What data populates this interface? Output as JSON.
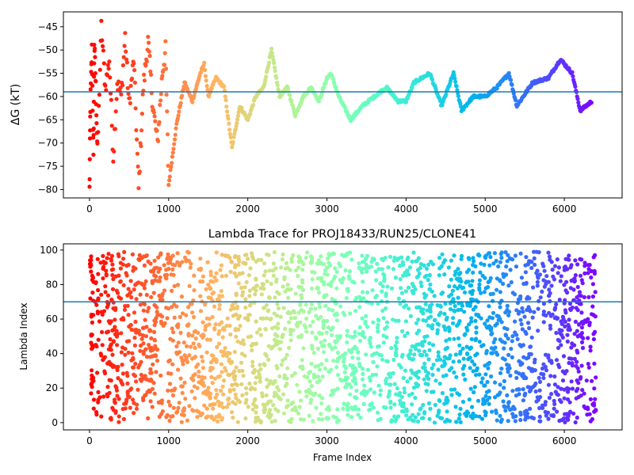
{
  "chart_data": [
    {
      "type": "scatter",
      "title": "",
      "xlabel": "",
      "ylabel": "ΔG (kT)",
      "xlim": [
        -330,
        6730
      ],
      "ylim": [
        -81.8,
        -41.8
      ],
      "xticks": [
        0,
        1000,
        2000,
        3000,
        4000,
        5000,
        6000
      ],
      "yticks": [
        -45,
        -50,
        -55,
        -60,
        -65,
        -70,
        -75,
        -80
      ],
      "hline": -59,
      "colormap": "rainbow (reversed: early frames red, late frames purple)",
      "point_keys": [
        [
          0,
          -80
        ],
        [
          10,
          -62
        ],
        [
          30,
          -50
        ],
        [
          50,
          -74
        ],
        [
          60,
          -48
        ],
        [
          80,
          -58
        ],
        [
          100,
          -72
        ],
        [
          150,
          -45
        ],
        [
          200,
          -58
        ],
        [
          250,
          -52
        ],
        [
          300,
          -73
        ],
        [
          350,
          -57
        ],
        [
          400,
          -60
        ],
        [
          450,
          -47
        ],
        [
          500,
          -62
        ],
        [
          560,
          -52
        ],
        [
          620,
          -80
        ],
        [
          680,
          -58
        ],
        [
          740,
          -48
        ],
        [
          800,
          -62
        ],
        [
          860,
          -70
        ],
        [
          920,
          -55
        ],
        [
          960,
          -50
        ],
        [
          1000,
          -79
        ],
        [
          1100,
          -66
        ],
        [
          1200,
          -57
        ],
        [
          1300,
          -61
        ],
        [
          1400,
          -55
        ],
        [
          1450,
          -53
        ],
        [
          1500,
          -60
        ],
        [
          1600,
          -56
        ],
        [
          1700,
          -58
        ],
        [
          1800,
          -71
        ],
        [
          1900,
          -62
        ],
        [
          2000,
          -65
        ],
        [
          2100,
          -60
        ],
        [
          2200,
          -58
        ],
        [
          2300,
          -50
        ],
        [
          2400,
          -60
        ],
        [
          2500,
          -58
        ],
        [
          2600,
          -64
        ],
        [
          2700,
          -60
        ],
        [
          2800,
          -58
        ],
        [
          2900,
          -61
        ],
        [
          3000,
          -56
        ],
        [
          3050,
          -55
        ],
        [
          3150,
          -60
        ],
        [
          3300,
          -65
        ],
        [
          3450,
          -62
        ],
        [
          3600,
          -60
        ],
        [
          3750,
          -58
        ],
        [
          3900,
          -61
        ],
        [
          4000,
          -61
        ],
        [
          4100,
          -57
        ],
        [
          4200,
          -56
        ],
        [
          4300,
          -55
        ],
        [
          4450,
          -62
        ],
        [
          4600,
          -55
        ],
        [
          4700,
          -63
        ],
        [
          4850,
          -60
        ],
        [
          5000,
          -60
        ],
        [
          5150,
          -58
        ],
        [
          5300,
          -55
        ],
        [
          5400,
          -62
        ],
        [
          5600,
          -57
        ],
        [
          5800,
          -56
        ],
        [
          5950,
          -52
        ],
        [
          6100,
          -55
        ],
        [
          6200,
          -63
        ],
        [
          6350,
          -61
        ]
      ]
    },
    {
      "type": "scatter",
      "title": "Lambda Trace for PROJ18433/RUN25/CLONE41",
      "xlabel": "Frame Index",
      "ylabel": "Lambda Index",
      "xlim": [
        -330,
        6730
      ],
      "ylim": [
        -4.2,
        103.6
      ],
      "xticks": [
        0,
        1000,
        2000,
        3000,
        4000,
        5000,
        6000
      ],
      "yticks": [
        0,
        20,
        40,
        60,
        80,
        100
      ],
      "hline": 70,
      "colormap": "rainbow (reversed: early frames red, late frames purple)",
      "x_range": [
        0,
        6400
      ],
      "y_range": [
        0,
        99
      ]
    }
  ]
}
